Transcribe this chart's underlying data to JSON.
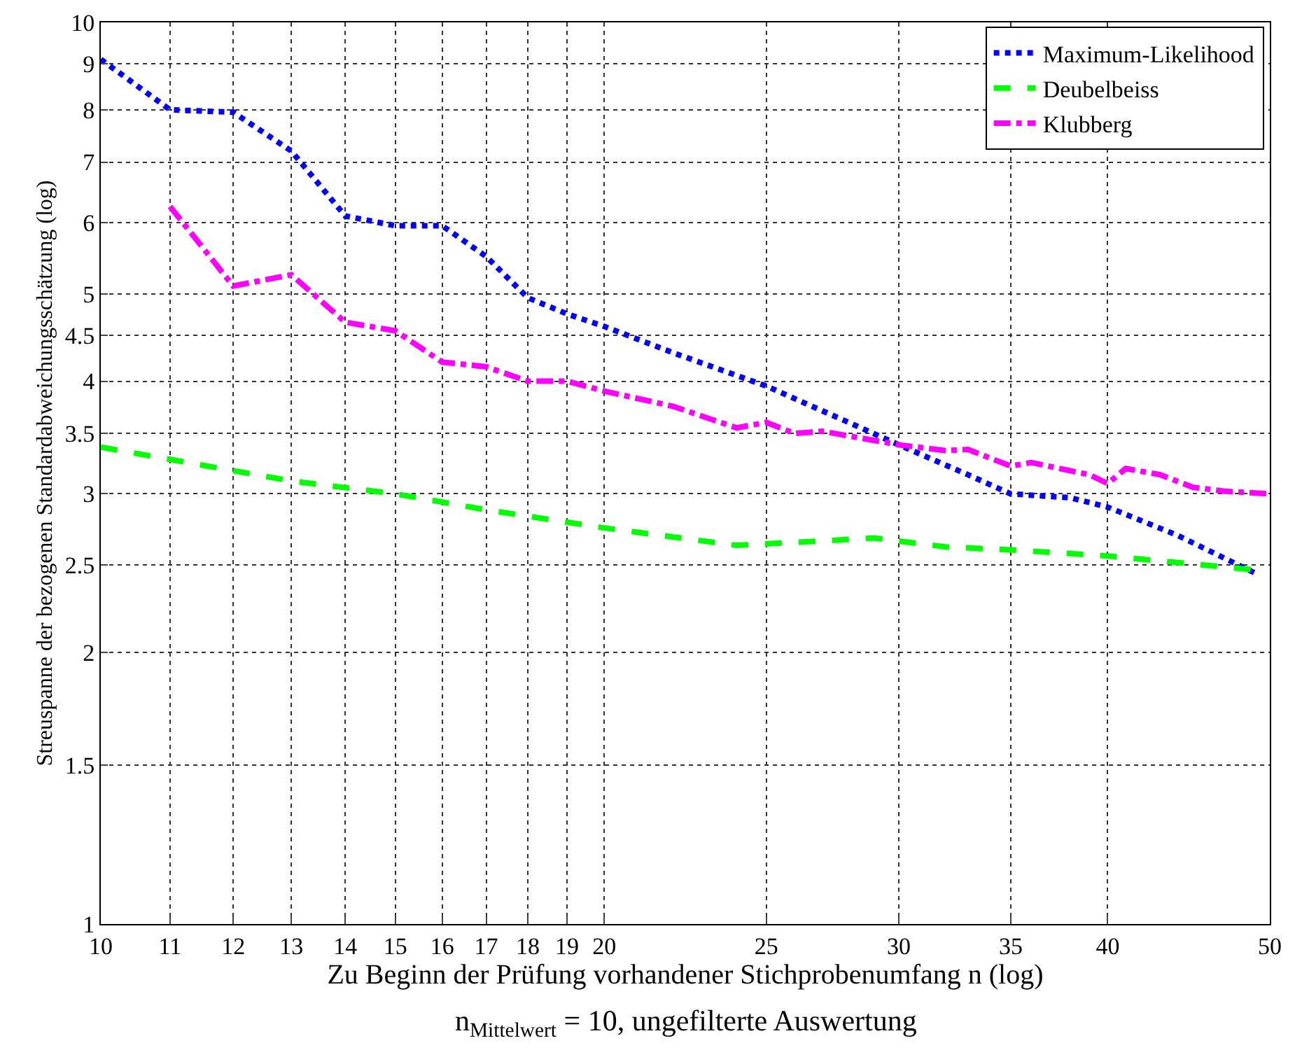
{
  "chart_data": {
    "type": "line",
    "xlabel": "Zu Beginn der Prüfung vorhandener Stichprobenumfang n (log)",
    "ylabel": "Streuspanne der bezogenen Standardabweichungsschätzung (log)",
    "annotations": [
      "n$_{Mittelwert}$ = 10, ungefilterte Auswertung"
    ],
    "log": "xy",
    "xlim": [
      10,
      50
    ],
    "ylim": [
      1,
      10
    ],
    "xticks": [
      10,
      11,
      12,
      13,
      14,
      15,
      16,
      17,
      18,
      19,
      20,
      25,
      30,
      35,
      40,
      50
    ],
    "yticks": [
      1,
      1.5,
      2,
      2.5,
      3,
      3.5,
      4,
      4.5,
      5,
      6,
      7,
      8,
      9,
      10
    ],
    "grid": true,
    "legend": "top right",
    "marker": "none",
    "series": [
      {
        "name": "Maximum-Likelihood",
        "color": "#0000ff",
        "line_style": "dotted",
        "x": [
          10,
          11,
          12,
          13,
          14,
          15,
          16,
          17,
          18,
          19,
          20,
          22,
          25,
          28,
          30,
          33,
          35,
          38,
          40,
          44,
          49
        ],
        "values": [
          9.1,
          8.0,
          7.95,
          7.2,
          6.1,
          5.95,
          5.95,
          5.5,
          4.95,
          4.75,
          4.6,
          4.3,
          3.95,
          3.6,
          3.4,
          3.15,
          3.0,
          2.97,
          2.9,
          2.7,
          2.45
        ]
      },
      {
        "name": "Deubelbeiss",
        "color": "#00ff00",
        "line_style": "dashed",
        "x": [
          10,
          13,
          15,
          17,
          20,
          24,
          26,
          29,
          32,
          35,
          40,
          49
        ],
        "values": [
          3.38,
          3.1,
          3.0,
          2.88,
          2.75,
          2.63,
          2.65,
          2.68,
          2.62,
          2.6,
          2.56,
          2.47
        ]
      },
      {
        "name": "Klubberg",
        "color": "#ff00ff",
        "line_style": "dashdot",
        "x": [
          11,
          12,
          13,
          14,
          15,
          16,
          17,
          18,
          19,
          20,
          22,
          24,
          25,
          26,
          27,
          30,
          32,
          33,
          35,
          36,
          39,
          40,
          41,
          43,
          45,
          47,
          50
        ],
        "values": [
          6.25,
          5.1,
          5.25,
          4.65,
          4.55,
          4.2,
          4.15,
          4.0,
          4.0,
          3.9,
          3.75,
          3.55,
          3.6,
          3.5,
          3.52,
          3.4,
          3.35,
          3.36,
          3.22,
          3.25,
          3.15,
          3.08,
          3.2,
          3.15,
          3.05,
          3.02,
          3.0
        ]
      }
    ]
  }
}
